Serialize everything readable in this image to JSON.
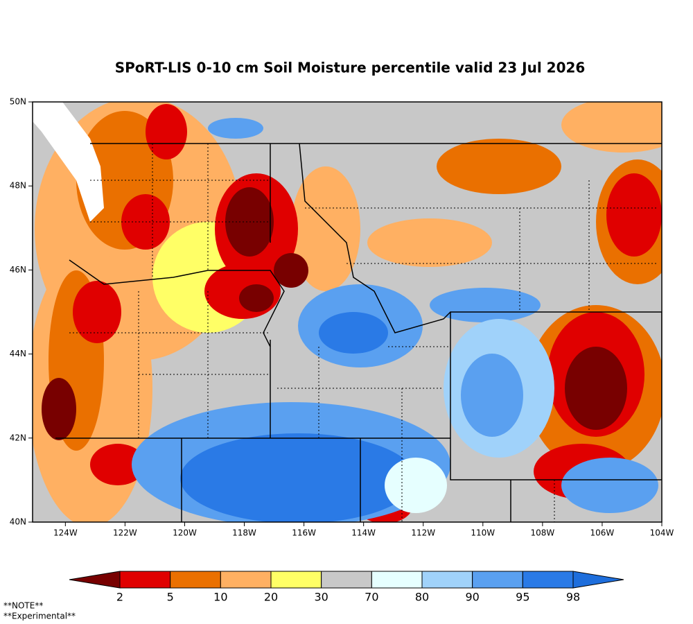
{
  "title": "SPoRT-LIS 0-10 cm Soil Moisture percentile valid 23 Jul 2026",
  "map": {
    "lon_range": [
      -125.1,
      -104
    ],
    "lat_range": [
      40,
      50
    ],
    "lon_ticks": [
      {
        "value": -124,
        "label": "124W"
      },
      {
        "value": -122,
        "label": "122W"
      },
      {
        "value": -120,
        "label": "120W"
      },
      {
        "value": -118,
        "label": "118W"
      },
      {
        "value": -116,
        "label": "116W"
      },
      {
        "value": -114,
        "label": "114W"
      },
      {
        "value": -112,
        "label": "112W"
      },
      {
        "value": -110,
        "label": "110W"
      },
      {
        "value": -108,
        "label": "108W"
      },
      {
        "value": -106,
        "label": "106W"
      },
      {
        "value": -104,
        "label": "104W"
      }
    ],
    "lat_ticks": [
      {
        "value": 50,
        "label": "50N"
      },
      {
        "value": 48,
        "label": "48N"
      },
      {
        "value": 46,
        "label": "46N"
      },
      {
        "value": 44,
        "label": "44N"
      },
      {
        "value": 42,
        "label": "42N"
      },
      {
        "value": 40,
        "label": "40N"
      }
    ]
  },
  "colorbar": {
    "boundaries": [
      2,
      5,
      10,
      20,
      30,
      70,
      80,
      90,
      95,
      98
    ],
    "colors": [
      "#780000",
      "#e00000",
      "#ea7000",
      "#ffb062",
      "#ffff66",
      "#c8c8c8",
      "#e6ffff",
      "#a0d2fa",
      "#5aa0f0",
      "#2a7ae6",
      "#1e6edc"
    ]
  },
  "notes": [
    "**NOTE**",
    "**Experimental**"
  ]
}
